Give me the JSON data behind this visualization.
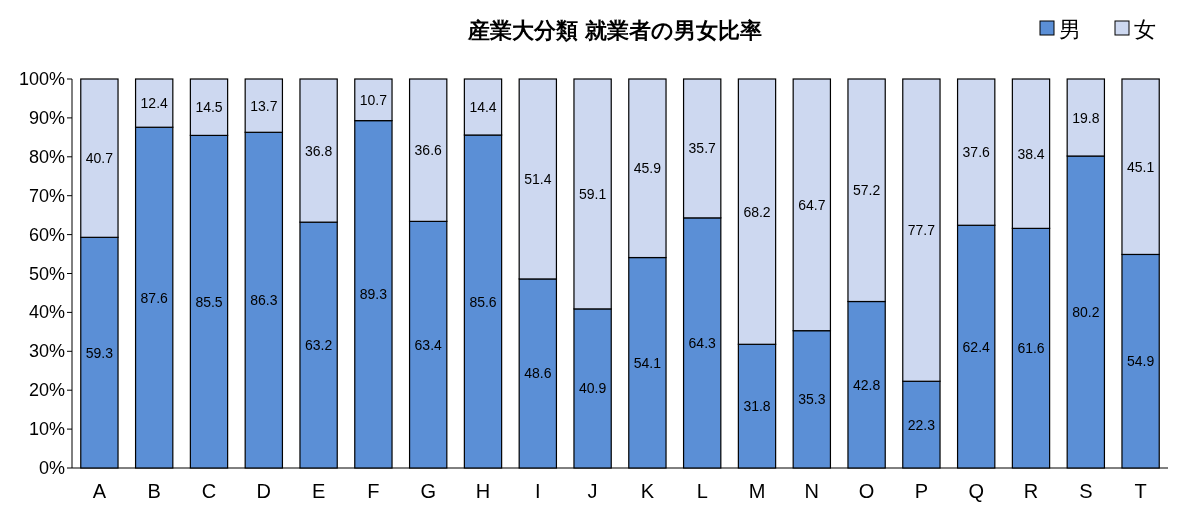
{
  "chart_data": {
    "type": "bar",
    "title": "産業大分類 就業者の男女比率",
    "stacked": true,
    "data_labels": true,
    "legend": "top right",
    "categories": [
      "A",
      "B",
      "C",
      "D",
      "E",
      "F",
      "G",
      "H",
      "I",
      "J",
      "K",
      "L",
      "M",
      "N",
      "O",
      "P",
      "Q",
      "R",
      "S",
      "T"
    ],
    "ylim": [
      0,
      100
    ],
    "yticks": [
      {
        "value": 0,
        "label": "0%"
      },
      {
        "value": 10,
        "label": "10%"
      },
      {
        "value": 20,
        "label": "20%"
      },
      {
        "value": 30,
        "label": "30%"
      },
      {
        "value": 40,
        "label": "40%"
      },
      {
        "value": 50,
        "label": "50%"
      },
      {
        "value": 60,
        "label": "60%"
      },
      {
        "value": 70,
        "label": "70%"
      },
      {
        "value": 80,
        "label": "80%"
      },
      {
        "value": 90,
        "label": "90%"
      },
      {
        "value": 100,
        "label": "100%"
      }
    ],
    "series": [
      {
        "name": "男",
        "color": "#5b8fd6",
        "values": [
          59.3,
          87.6,
          85.5,
          86.3,
          63.2,
          89.3,
          63.4,
          85.6,
          48.6,
          40.9,
          54.1,
          64.3,
          31.8,
          35.3,
          42.8,
          22.3,
          62.4,
          61.6,
          80.2,
          54.9
        ]
      },
      {
        "name": "女",
        "color": "#cdd8f0",
        "values": [
          40.7,
          12.4,
          14.5,
          13.7,
          36.8,
          10.7,
          36.6,
          14.4,
          51.4,
          59.1,
          45.9,
          35.7,
          68.2,
          64.7,
          57.2,
          77.7,
          37.6,
          38.4,
          19.8,
          45.1
        ]
      }
    ]
  }
}
